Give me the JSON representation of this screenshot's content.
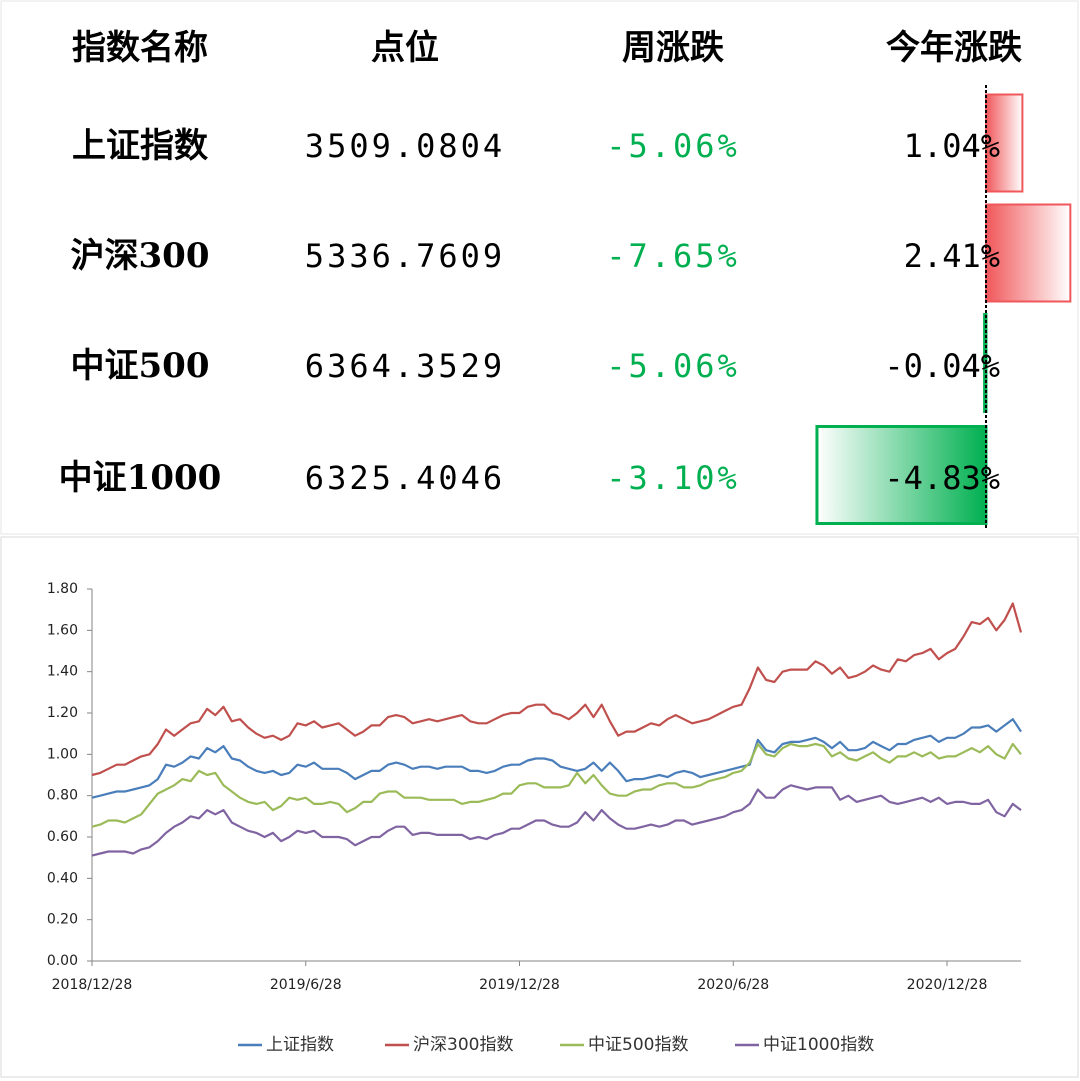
{
  "table": {
    "columns": [
      "指数名称",
      "点位",
      "周涨跌",
      "今年涨跌"
    ],
    "rows": [
      [
        "上证指数",
        "3509.0804",
        "-5.06%"
      ],
      [
        "沪深300",
        "5336.7609",
        "-7.65%"
      ],
      [
        "中证500",
        "6364.3529",
        "-5.06%"
      ],
      [
        "中证1000",
        "6325.4046",
        "-3.10%"
      ]
    ]
  },
  "chart_data": [
    {
      "type": "hbar",
      "values": [
        1.04,
        2.41,
        -0.04,
        -4.83
      ],
      "value_labels": [
        "1.04%",
        "2.41%",
        "-0.04%",
        "-4.83%"
      ],
      "positive_color": "#f0575a",
      "negative_color": "#00b050"
    },
    {
      "type": "line",
      "categories": [
        "2018/12/28",
        null,
        null,
        null,
        null,
        null,
        null,
        null,
        null,
        null,
        null,
        null,
        null,
        null,
        null,
        null,
        null,
        null,
        null,
        null,
        null,
        null,
        null,
        null,
        null,
        null,
        "2019/6/28",
        null,
        null,
        null,
        null,
        null,
        null,
        null,
        null,
        null,
        null,
        null,
        null,
        null,
        null,
        null,
        null,
        null,
        null,
        null,
        null,
        null,
        null,
        null,
        null,
        null,
        "2019/12/28",
        null,
        null,
        null,
        null,
        null,
        null,
        null,
        null,
        null,
        null,
        null,
        null,
        null,
        null,
        null,
        null,
        null,
        null,
        null,
        null,
        null,
        null,
        null,
        null,
        null,
        "2020/6/28",
        null,
        null,
        null,
        null,
        null,
        null,
        null,
        null,
        null,
        null,
        null,
        null,
        null,
        null,
        null,
        null,
        null,
        null,
        null,
        null,
        null,
        null,
        null,
        null,
        null,
        "2020/12/28",
        null,
        null,
        null,
        null,
        null,
        null,
        null,
        null,
        null
      ],
      "ylim": [
        0,
        1.8
      ],
      "yticks": [
        {
          "value": 0,
          "label": "0.00"
        },
        {
          "value": 0.2,
          "label": "0.20"
        },
        {
          "value": 0.4,
          "label": "0.40"
        },
        {
          "value": 0.6,
          "label": "0.60"
        },
        {
          "value": 0.8,
          "label": "0.80"
        },
        {
          "value": 1.0,
          "label": "1.00"
        },
        {
          "value": 1.2,
          "label": "1.20"
        },
        {
          "value": 1.4,
          "label": "1.40"
        },
        {
          "value": 1.6,
          "label": "1.60"
        },
        {
          "value": 1.8,
          "label": "1.80"
        }
      ],
      "grid": false,
      "legend": "bottom",
      "series": [
        {
          "name": "上证指数",
          "color": "#4a7ebb",
          "values": [
            0.79,
            0.8,
            0.81,
            0.82,
            0.82,
            0.83,
            0.84,
            0.85,
            0.88,
            0.95,
            0.94,
            0.96,
            0.99,
            0.98,
            1.03,
            1.01,
            1.04,
            0.98,
            0.97,
            0.94,
            0.92,
            0.91,
            0.92,
            0.9,
            0.91,
            0.95,
            0.94,
            0.96,
            0.93,
            0.93,
            0.93,
            0.91,
            0.88,
            0.9,
            0.92,
            0.92,
            0.95,
            0.96,
            0.95,
            0.93,
            0.94,
            0.94,
            0.93,
            0.94,
            0.94,
            0.94,
            0.92,
            0.92,
            0.91,
            0.92,
            0.94,
            0.95,
            0.95,
            0.97,
            0.98,
            0.98,
            0.97,
            0.94,
            0.93,
            0.92,
            0.93,
            0.96,
            0.92,
            0.96,
            0.92,
            0.87,
            0.88,
            0.88,
            0.89,
            0.9,
            0.89,
            0.91,
            0.92,
            0.91,
            0.89,
            0.9,
            0.91,
            0.92,
            0.93,
            0.94,
            0.95,
            1.07,
            1.02,
            1.01,
            1.05,
            1.06,
            1.06,
            1.07,
            1.08,
            1.06,
            1.03,
            1.06,
            1.02,
            1.02,
            1.03,
            1.06,
            1.04,
            1.02,
            1.05,
            1.05,
            1.07,
            1.08,
            1.09,
            1.06,
            1.08,
            1.08,
            1.1,
            1.13,
            1.13,
            1.14,
            1.11,
            1.14,
            1.17,
            1.11
          ]
        },
        {
          "name": "沪深300指数",
          "color": "#c0504d",
          "values": [
            0.9,
            0.91,
            0.93,
            0.95,
            0.95,
            0.97,
            0.99,
            1.0,
            1.05,
            1.12,
            1.09,
            1.12,
            1.15,
            1.16,
            1.22,
            1.19,
            1.23,
            1.16,
            1.17,
            1.13,
            1.1,
            1.08,
            1.09,
            1.07,
            1.09,
            1.15,
            1.14,
            1.16,
            1.13,
            1.14,
            1.15,
            1.12,
            1.09,
            1.11,
            1.14,
            1.14,
            1.18,
            1.19,
            1.18,
            1.15,
            1.16,
            1.17,
            1.16,
            1.17,
            1.18,
            1.19,
            1.16,
            1.15,
            1.15,
            1.17,
            1.19,
            1.2,
            1.2,
            1.23,
            1.24,
            1.24,
            1.2,
            1.19,
            1.17,
            1.2,
            1.24,
            1.18,
            1.24,
            1.16,
            1.09,
            1.11,
            1.11,
            1.13,
            1.15,
            1.14,
            1.17,
            1.19,
            1.17,
            1.15,
            1.16,
            1.17,
            1.19,
            1.21,
            1.23,
            1.24,
            1.32,
            1.42,
            1.36,
            1.35,
            1.4,
            1.41,
            1.41,
            1.41,
            1.45,
            1.43,
            1.39,
            1.42,
            1.37,
            1.38,
            1.4,
            1.43,
            1.41,
            1.4,
            1.46,
            1.45,
            1.48,
            1.49,
            1.51,
            1.46,
            1.49,
            1.51,
            1.57,
            1.64,
            1.63,
            1.66,
            1.6,
            1.65,
            1.73,
            1.59
          ]
        },
        {
          "name": "中证500指数",
          "color": "#9bbb59",
          "values": [
            0.65,
            0.66,
            0.68,
            0.68,
            0.67,
            0.69,
            0.71,
            0.76,
            0.81,
            0.83,
            0.85,
            0.88,
            0.87,
            0.92,
            0.9,
            0.91,
            0.85,
            0.82,
            0.79,
            0.77,
            0.76,
            0.77,
            0.73,
            0.75,
            0.79,
            0.78,
            0.79,
            0.76,
            0.76,
            0.77,
            0.76,
            0.72,
            0.74,
            0.77,
            0.77,
            0.81,
            0.82,
            0.82,
            0.79,
            0.79,
            0.79,
            0.78,
            0.78,
            0.78,
            0.78,
            0.76,
            0.77,
            0.77,
            0.78,
            0.79,
            0.81,
            0.81,
            0.85,
            0.86,
            0.86,
            0.84,
            0.84,
            0.84,
            0.85,
            0.91,
            0.86,
            0.9,
            0.85,
            0.81,
            0.8,
            0.8,
            0.82,
            0.83,
            0.83,
            0.85,
            0.86,
            0.86,
            0.84,
            0.84,
            0.85,
            0.87,
            0.88,
            0.89,
            0.91,
            0.92,
            0.96,
            1.05,
            1.0,
            0.99,
            1.03,
            1.05,
            1.04,
            1.04,
            1.05,
            1.04,
            0.99,
            1.01,
            0.98,
            0.97,
            0.99,
            1.01,
            0.98,
            0.96,
            0.99,
            0.99,
            1.01,
            0.99,
            1.01,
            0.98,
            0.99,
            0.99,
            1.01,
            1.03,
            1.01,
            1.04,
            1.0,
            0.98,
            1.05,
            1.0
          ]
        },
        {
          "name": "中证1000指数",
          "color": "#8064a2",
          "values": [
            0.51,
            0.52,
            0.53,
            0.53,
            0.53,
            0.52,
            0.54,
            0.55,
            0.58,
            0.62,
            0.65,
            0.67,
            0.7,
            0.69,
            0.73,
            0.71,
            0.73,
            0.67,
            0.65,
            0.63,
            0.62,
            0.6,
            0.62,
            0.58,
            0.6,
            0.63,
            0.62,
            0.63,
            0.6,
            0.6,
            0.6,
            0.59,
            0.56,
            0.58,
            0.6,
            0.6,
            0.63,
            0.65,
            0.65,
            0.61,
            0.62,
            0.62,
            0.61,
            0.61,
            0.61,
            0.61,
            0.59,
            0.6,
            0.59,
            0.61,
            0.62,
            0.64,
            0.64,
            0.66,
            0.68,
            0.68,
            0.66,
            0.65,
            0.65,
            0.67,
            0.72,
            0.68,
            0.73,
            0.69,
            0.66,
            0.64,
            0.64,
            0.65,
            0.66,
            0.65,
            0.66,
            0.68,
            0.68,
            0.66,
            0.67,
            0.68,
            0.69,
            0.7,
            0.72,
            0.73,
            0.76,
            0.83,
            0.79,
            0.79,
            0.83,
            0.85,
            0.84,
            0.83,
            0.84,
            0.84,
            0.84,
            0.78,
            0.8,
            0.77,
            0.78,
            0.79,
            0.8,
            0.77,
            0.76,
            0.77,
            0.78,
            0.79,
            0.77,
            0.79,
            0.76,
            0.77,
            0.77,
            0.76,
            0.76,
            0.78,
            0.72,
            0.7,
            0.76,
            0.73
          ]
        }
      ]
    }
  ]
}
